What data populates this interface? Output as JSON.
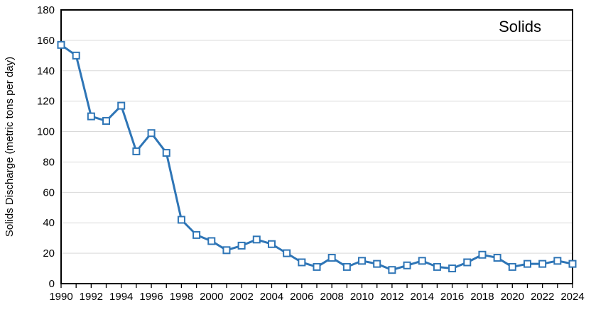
{
  "chart_data": {
    "type": "line",
    "title": "Solids",
    "xlabel": "",
    "ylabel": "Solids Discharge (metric tons per day)",
    "x": [
      1990,
      1991,
      1992,
      1993,
      1994,
      1995,
      1996,
      1997,
      1998,
      1999,
      2000,
      2001,
      2002,
      2003,
      2004,
      2005,
      2006,
      2007,
      2008,
      2009,
      2010,
      2011,
      2012,
      2013,
      2014,
      2015,
      2016,
      2017,
      2018,
      2019,
      2020,
      2021,
      2022,
      2023,
      2024
    ],
    "series": [
      {
        "name": "Solids",
        "values": [
          157,
          150,
          110,
          107,
          117,
          87,
          99,
          86,
          42,
          32,
          28,
          22,
          25,
          29,
          26,
          20,
          14,
          11,
          17,
          11,
          15,
          13,
          9,
          12,
          15,
          11,
          10,
          14,
          19,
          17,
          11,
          13,
          13,
          15,
          13
        ]
      }
    ],
    "ylim": [
      0,
      180
    ],
    "ytick_step": 20,
    "xtick_label_step": 2,
    "grid": "horizontal-only",
    "legend": "none",
    "marker": "open-square",
    "colors": {
      "line": "#2E75B6",
      "marker_fill": "#ffffff",
      "gridline": "#D9D9D9",
      "axis": "#000000",
      "text": "#000000",
      "background": "#ffffff"
    }
  }
}
